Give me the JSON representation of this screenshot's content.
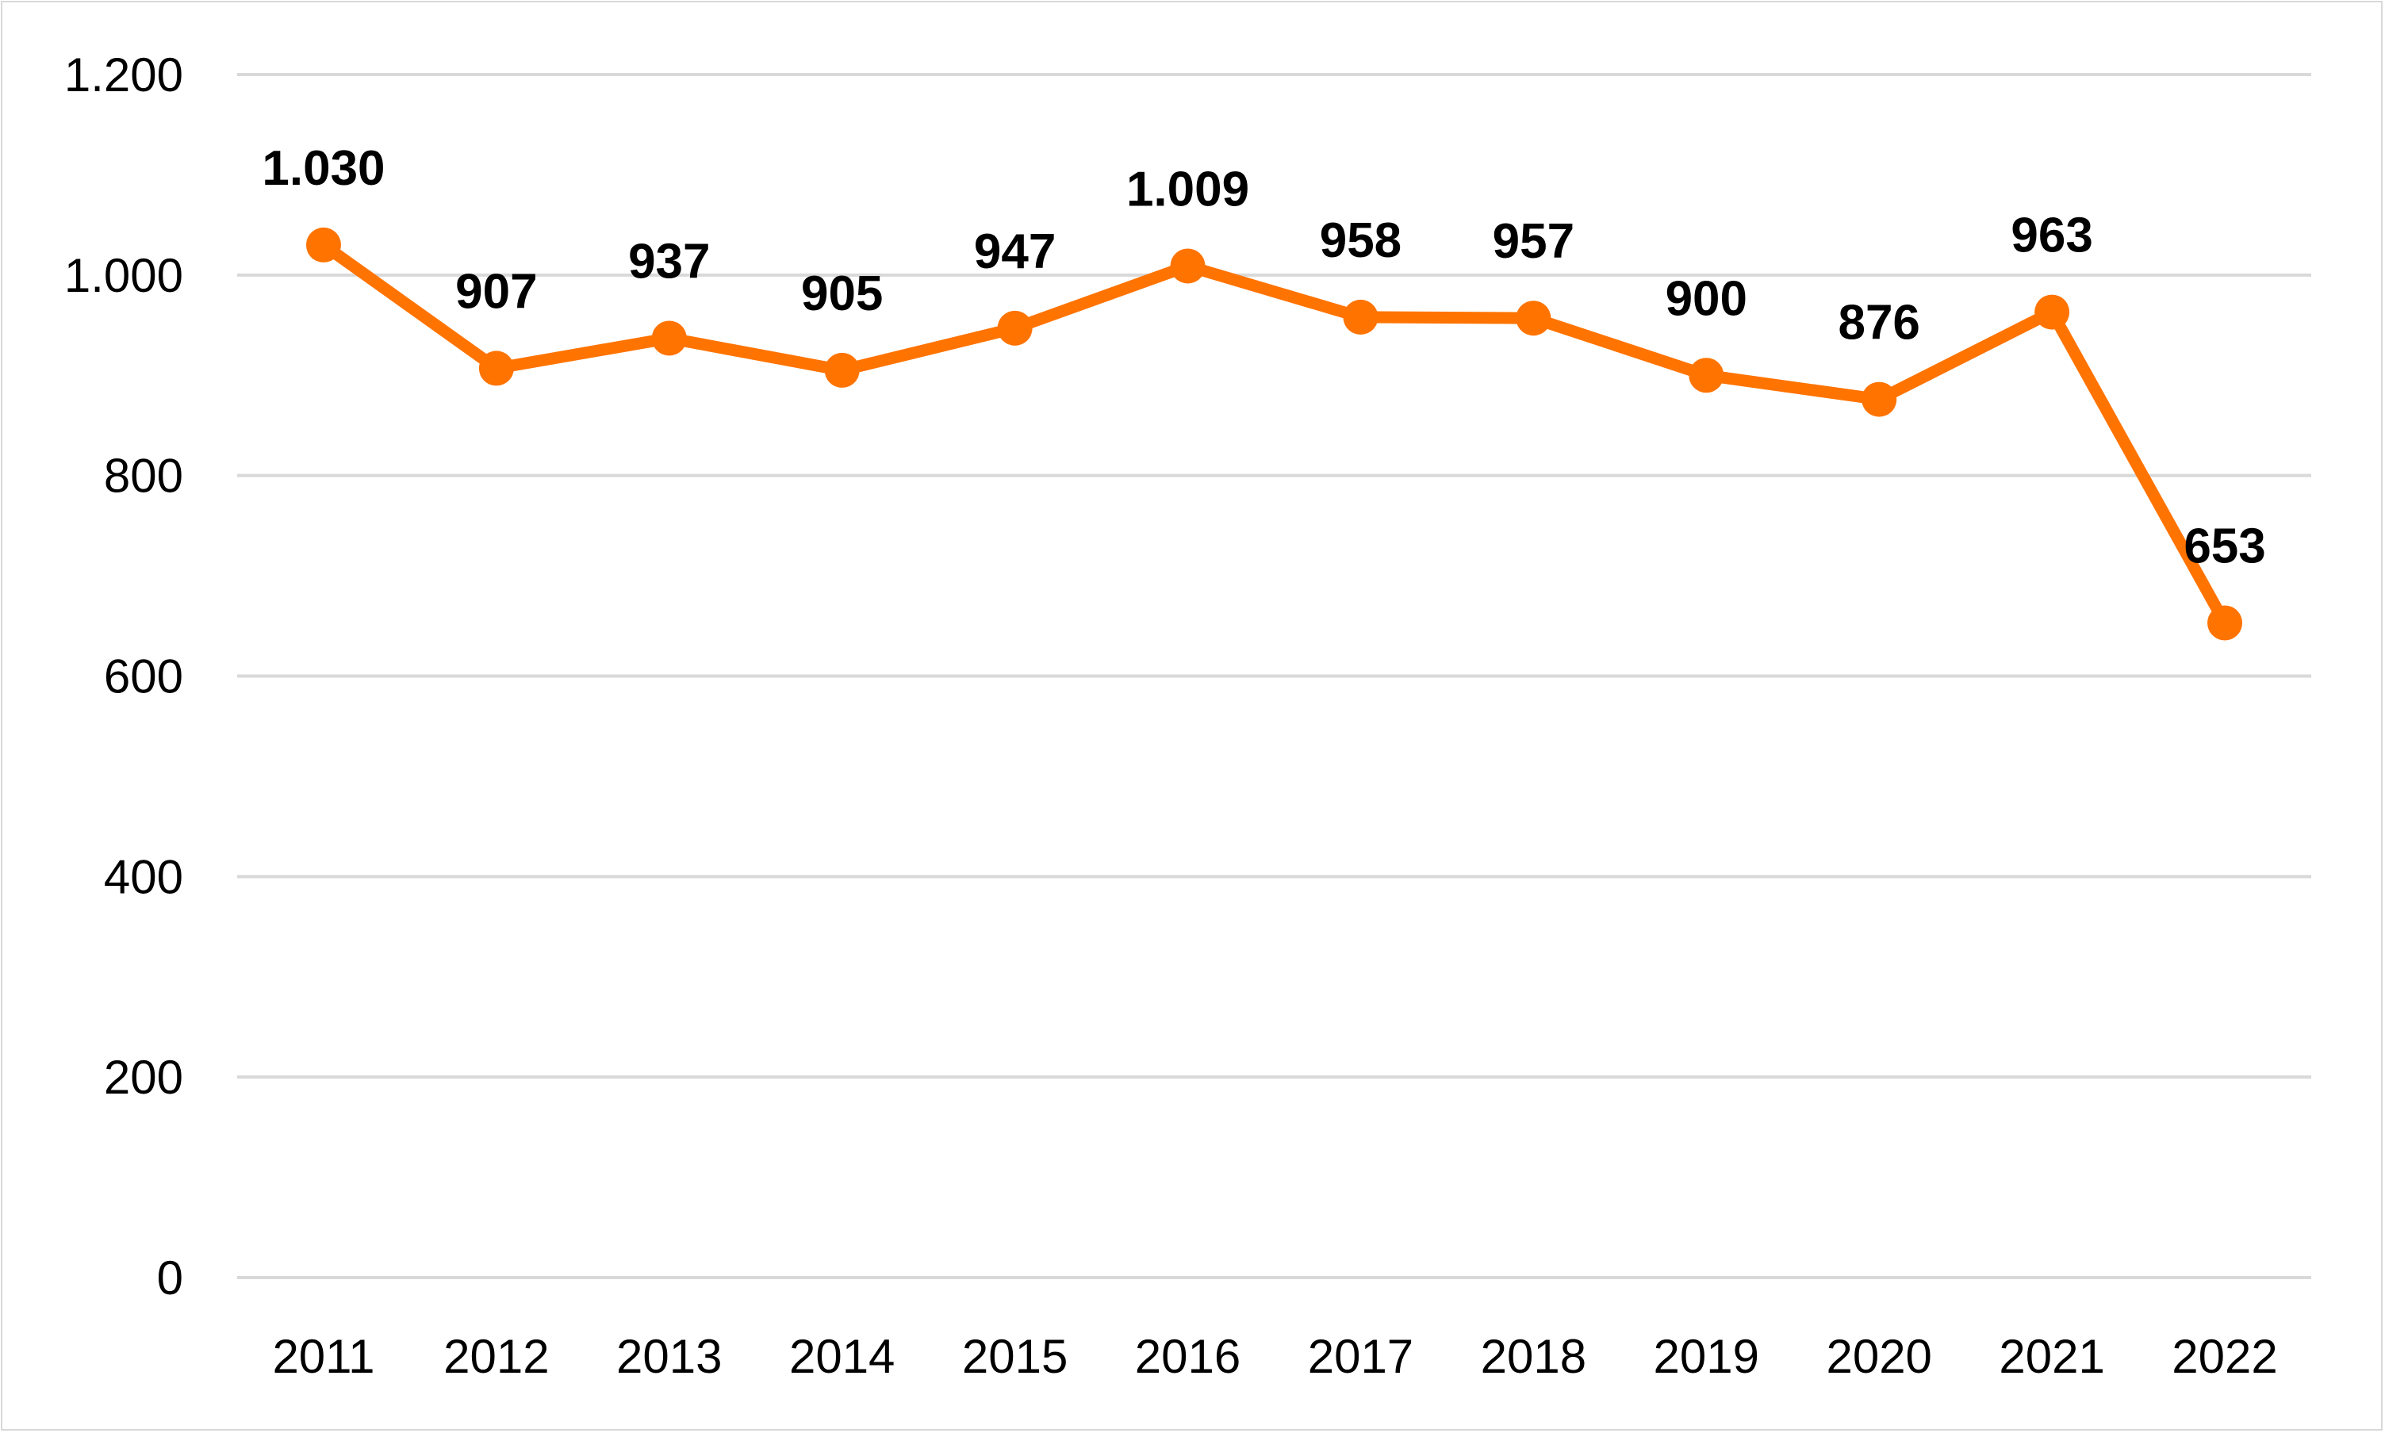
{
  "chart_data": {
    "type": "line",
    "title": "",
    "xlabel": "",
    "ylabel": "",
    "categories": [
      "2011",
      "2012",
      "2013",
      "2014",
      "2015",
      "2016",
      "2017",
      "2018",
      "2019",
      "2020",
      "2021",
      "2022"
    ],
    "series": [
      {
        "values": [
          1030,
          907,
          937,
          905,
          947,
          1009,
          958,
          957,
          900,
          876,
          963,
          653
        ],
        "data_labels": [
          "1.030",
          "907",
          "937",
          "905",
          "947",
          "1.009",
          "958",
          "957",
          "900",
          "876",
          "963",
          "653"
        ],
        "color": "#ff7300"
      }
    ],
    "ylim": [
      0,
      1200
    ],
    "yticks": [
      0,
      200,
      400,
      600,
      800,
      1000,
      1200
    ],
    "ytick_labels": [
      "0",
      "200",
      "400",
      "600",
      "800",
      "1.000",
      "1.200"
    ],
    "grid": true,
    "legend": "none",
    "markers": true
  }
}
